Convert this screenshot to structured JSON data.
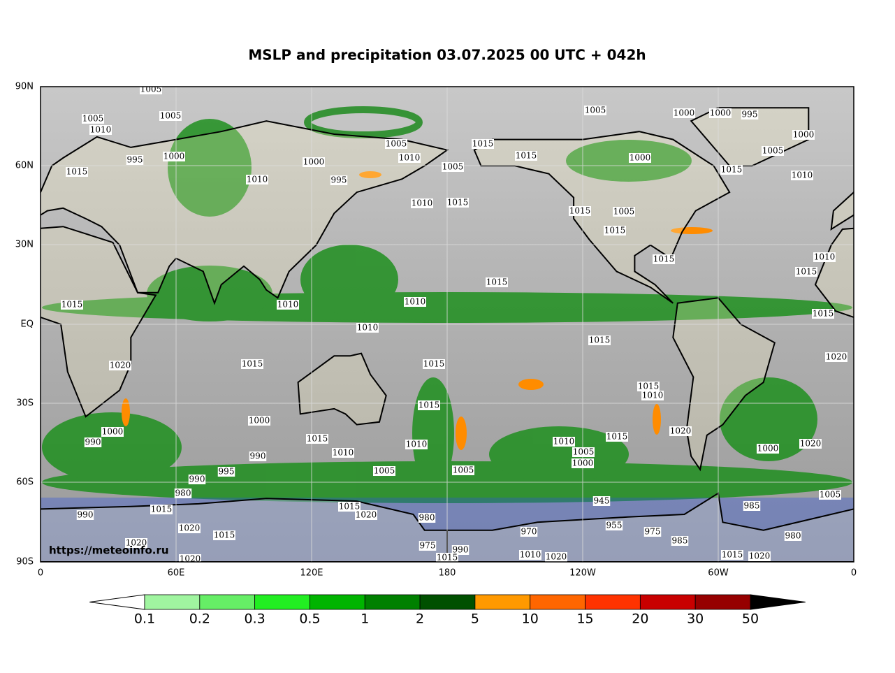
{
  "title": "MSLP and precipitation 03.07.2025 00 UTC + 042h",
  "source_url": "https://meteoinfo.ru",
  "lat_labels": [
    "90N",
    "60N",
    "30N",
    "EQ",
    "30S",
    "60S",
    "90S"
  ],
  "lon_labels": [
    "0",
    "60E",
    "120E",
    "180",
    "120W",
    "60W",
    "0"
  ],
  "colorbar": {
    "labels": [
      "0.1",
      "0.2",
      "0.3",
      "0.5",
      "1",
      "2",
      "5",
      "10",
      "15",
      "20",
      "30",
      "50"
    ],
    "colors": [
      "#a0f5a0",
      "#66ee66",
      "#22ee22",
      "#00b400",
      "#008000",
      "#005000",
      "#ff9900",
      "#ff6600",
      "#ff3300",
      "#c80000",
      "#960000"
    ],
    "under_color": "#ffffff",
    "over_color": "#000000"
  },
  "isobar_labels": [
    "1005",
    "1005",
    "1010",
    "1005",
    "995",
    "1000",
    "1015",
    "1010",
    "1000",
    "995",
    "1005",
    "1010",
    "1005",
    "1015",
    "1015",
    "1005",
    "1000",
    "1000",
    "995",
    "1000",
    "1005",
    "1015",
    "1010",
    "1000",
    "1010",
    "1015",
    "1015",
    "1005",
    "1015",
    "1015",
    "1015",
    "1010",
    "1010",
    "1010",
    "1015",
    "1015",
    "1010",
    "1015",
    "1015",
    "1020",
    "1020",
    "1015",
    "1015",
    "1015",
    "1010",
    "1015",
    "1000",
    "1000",
    "990",
    "1020",
    "1015",
    "1010",
    "1010",
    "990",
    "1005",
    "1005",
    "1010",
    "1005",
    "1000",
    "1015",
    "1000",
    "1020",
    "995",
    "990",
    "980",
    "990",
    "1015",
    "1020",
    "1015",
    "1020",
    "1020",
    "1015",
    "1020",
    "980",
    "975",
    "990",
    "1015",
    "1010",
    "1020",
    "970",
    "945",
    "955",
    "975",
    "985",
    "985",
    "1005",
    "980",
    "1015",
    "1020"
  ]
}
